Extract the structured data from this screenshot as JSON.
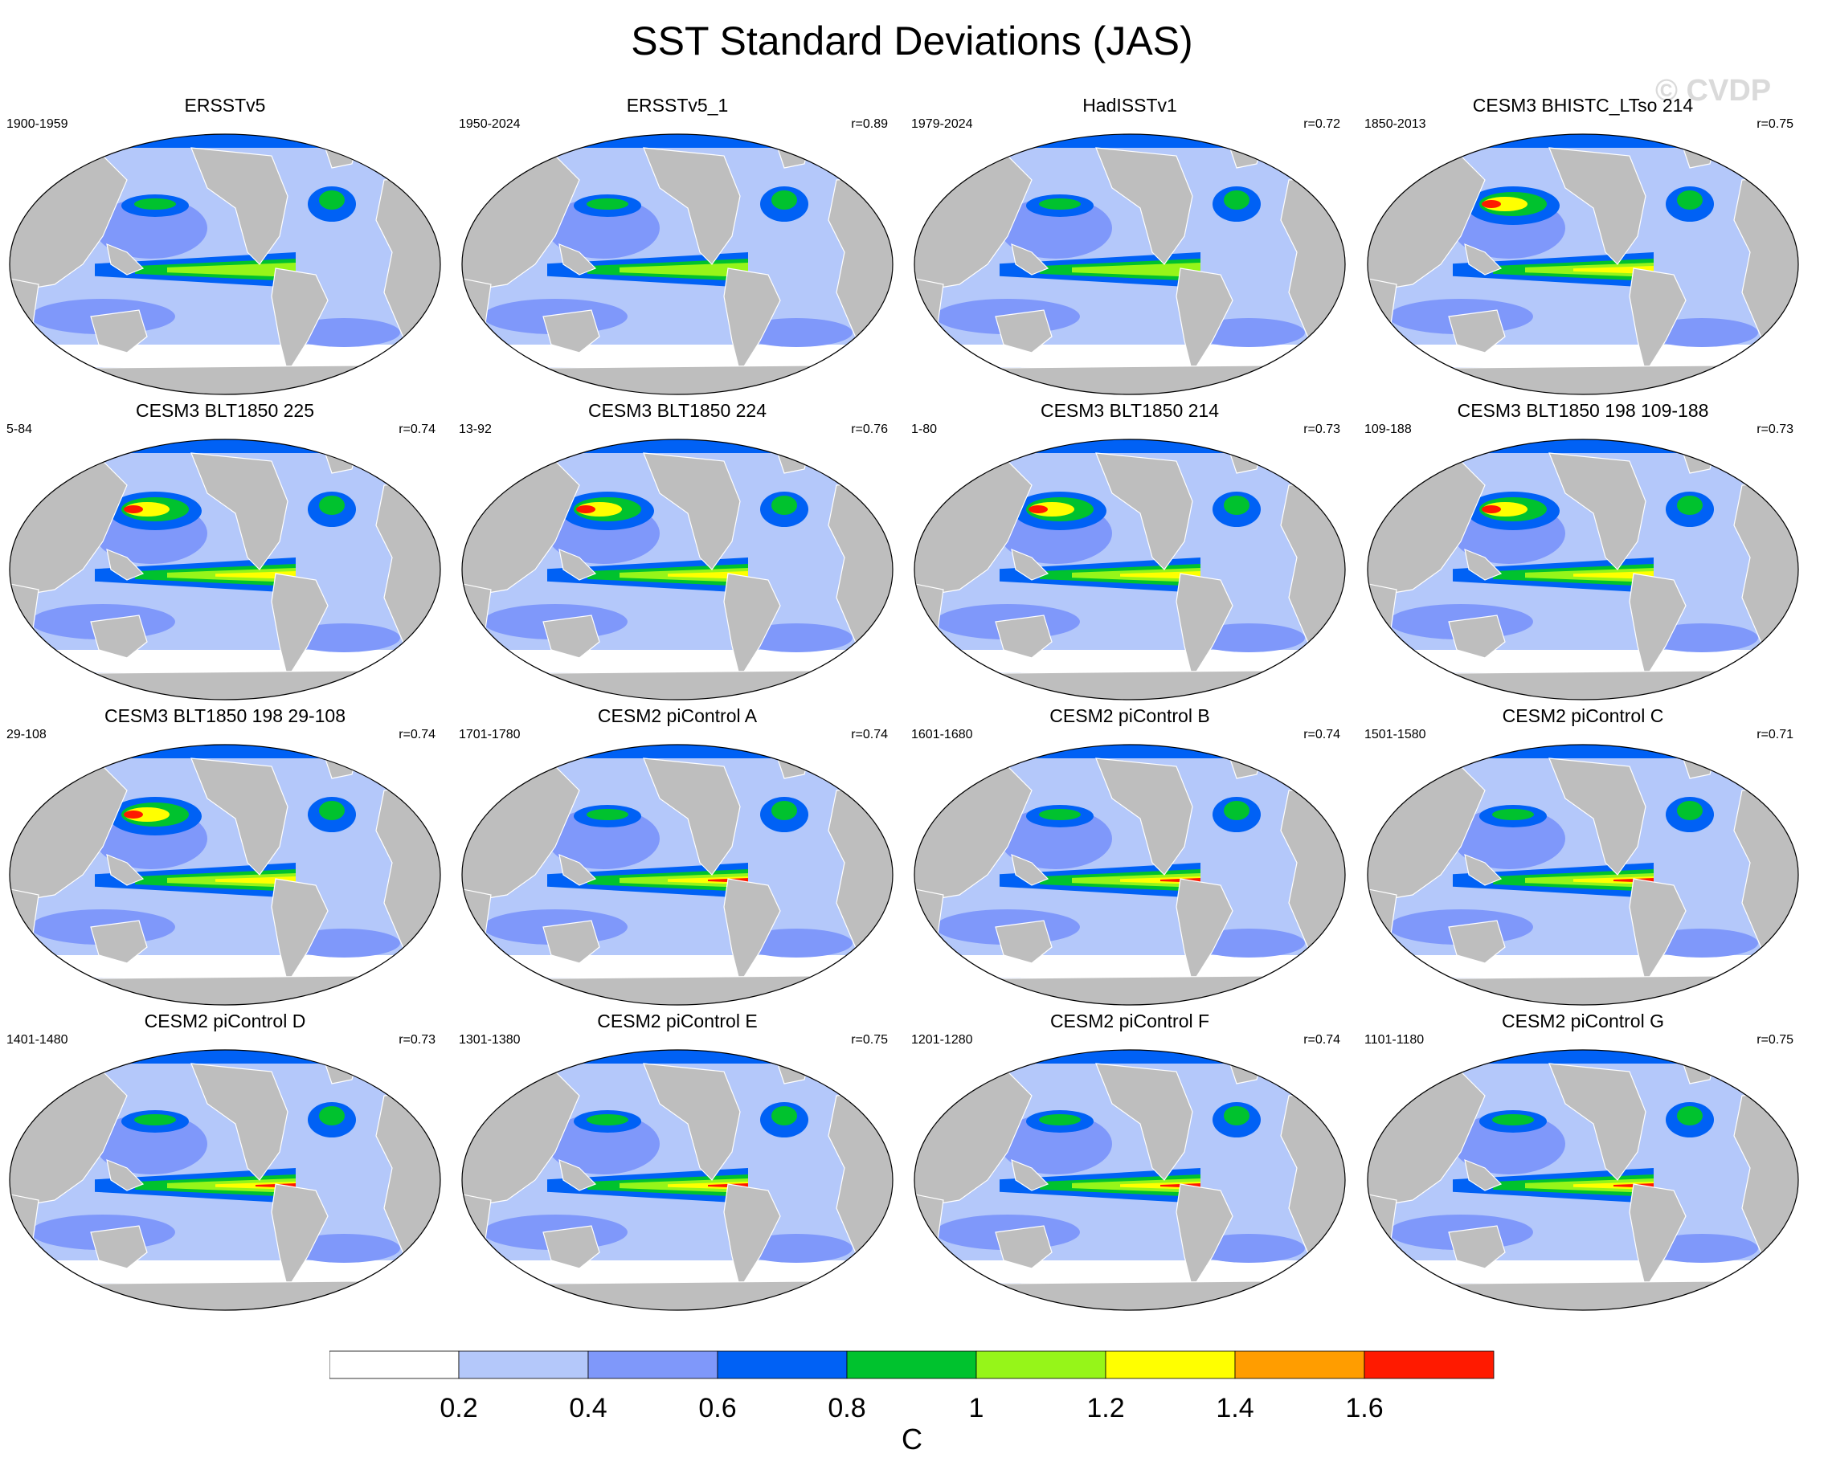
{
  "title": "SST Standard Deviations (JAS)",
  "watermark": "© CVDP",
  "colors": {
    "ocean_background": "#b4c8fa",
    "land": "#bebebe",
    "coast": "#ffffff"
  },
  "chart_data": {
    "type": "heatmap",
    "projection": "robinson",
    "panels": [
      {
        "title": "ERSSTv5",
        "years": "1900-1959",
        "r": ""
      },
      {
        "title": "ERSSTv5_1",
        "years": "1950-2024",
        "r": "r=0.89"
      },
      {
        "title": "HadISSTv1",
        "years": "1979-2024",
        "r": "r=0.72"
      },
      {
        "title": "CESM3 BHISTC_LTso 214",
        "years": "1850-2013",
        "r": "r=0.75"
      },
      {
        "title": "CESM3 BLT1850 225",
        "years": "5-84",
        "r": "r=0.74"
      },
      {
        "title": "CESM3 BLT1850 224",
        "years": "13-92",
        "r": "r=0.76"
      },
      {
        "title": "CESM3 BLT1850 214",
        "years": "1-80",
        "r": "r=0.73"
      },
      {
        "title": "CESM3 BLT1850 198 109-188",
        "years": "109-188",
        "r": "r=0.73"
      },
      {
        "title": "CESM3 BLT1850 198 29-108",
        "years": "29-108",
        "r": "r=0.74"
      },
      {
        "title": "CESM2 piControl A",
        "years": "1701-1780",
        "r": "r=0.74"
      },
      {
        "title": "CESM2 piControl B",
        "years": "1601-1680",
        "r": "r=0.74"
      },
      {
        "title": "CESM2 piControl C",
        "years": "1501-1580",
        "r": "r=0.71"
      },
      {
        "title": "CESM2 piControl D",
        "years": "1401-1480",
        "r": "r=0.73"
      },
      {
        "title": "CESM2 piControl E",
        "years": "1301-1380",
        "r": "r=0.75"
      },
      {
        "title": "CESM2 piControl F",
        "years": "1201-1280",
        "r": "r=0.74"
      },
      {
        "title": "CESM2 piControl G",
        "years": "1101-1180",
        "r": "r=0.75"
      }
    ],
    "colorbar": {
      "label": "C",
      "tick_labels": [
        "0.2",
        "0.4",
        "0.6",
        "0.8",
        "1",
        "1.2",
        "1.4",
        "1.6"
      ],
      "colors": [
        "#ffffff",
        "#b4c8fa",
        "#7f98fa",
        "#0061f5",
        "#00c22e",
        "#96f519",
        "#ffff00",
        "#ff9d00",
        "#ff1a00"
      ]
    }
  }
}
